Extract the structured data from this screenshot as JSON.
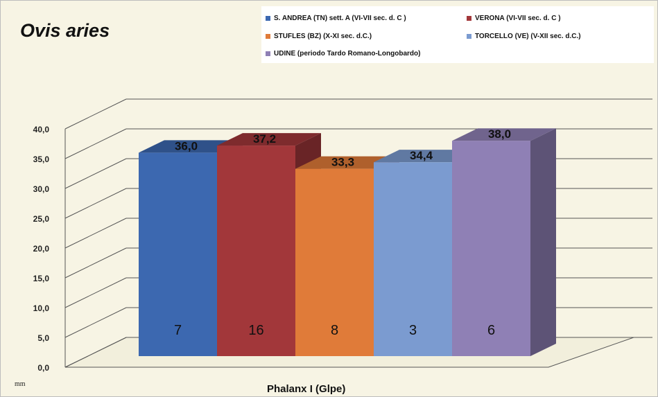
{
  "chart_data": {
    "type": "bar",
    "title": "Ovis aries",
    "xlabel": "Phalanx I (Glpe)",
    "ylabel": "mm",
    "ylim": [
      0,
      40
    ],
    "yticks": [
      "0,0",
      "5,0",
      "10,0",
      "15,0",
      "20,0",
      "25,0",
      "30,0",
      "35,0",
      "40,0"
    ],
    "grid": true,
    "legend_position": "top-right",
    "series": [
      {
        "name": "S. ANDREA (TN) sett. A (VI-VII sec. d. C )",
        "value": 36.0,
        "value_label": "36,0",
        "count": "7",
        "color": "#3c68b0"
      },
      {
        "name": "VERONA (VI-VII sec. d. C )",
        "value": 37.2,
        "value_label": "37,2",
        "count": "16",
        "color": "#a2373a"
      },
      {
        "name": "STUFLES (BZ) (X-XI sec. d.C.)",
        "value": 33.3,
        "value_label": "33,3",
        "count": "8",
        "color": "#e07b39"
      },
      {
        "name": "TORCELLO (VE) (V-XII sec. d.C.)",
        "value": 34.4,
        "value_label": "34,4",
        "count": "3",
        "color": "#7b9bd0"
      },
      {
        "name": "UDINE (periodo Tardo Romano-Longobardo)",
        "value": 38.0,
        "value_label": "38,0",
        "count": "6",
        "color": "#8f80b5"
      }
    ]
  }
}
